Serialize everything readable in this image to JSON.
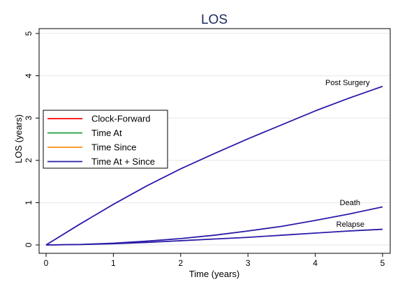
{
  "chart_data": {
    "type": "line",
    "title": "LOS",
    "xlabel": "Time (years)",
    "ylabel": "LOS (years)",
    "xlim": [
      0,
      5
    ],
    "ylim": [
      0,
      5
    ],
    "xticks": [
      0,
      1,
      2,
      3,
      4,
      5
    ],
    "yticks": [
      0,
      1,
      2,
      3,
      4,
      5
    ],
    "grid": true,
    "legend_position": "left",
    "x": [
      0,
      0.5,
      1,
      1.5,
      2,
      2.5,
      3,
      3.5,
      4,
      4.5,
      5
    ],
    "legend": [
      {
        "label": "Clock-Forward",
        "color": "#ff0000"
      },
      {
        "label": "Time At",
        "color": "#1e9b3a"
      },
      {
        "label": "Time Since",
        "color": "#ff8c1a"
      },
      {
        "label": "Time At + Since",
        "color": "#2a1aa8"
      }
    ],
    "annotations": [
      "Post Surgery",
      "Death",
      "Relapse"
    ],
    "series": [
      {
        "group": "Post Surgery",
        "legend_index": 3,
        "values": [
          0,
          0.49,
          0.96,
          1.4,
          1.8,
          2.16,
          2.51,
          2.84,
          3.17,
          3.47,
          3.75
        ]
      },
      {
        "group": "Death",
        "legend_index": 3,
        "values": [
          0,
          0.01,
          0.04,
          0.09,
          0.15,
          0.23,
          0.33,
          0.44,
          0.58,
          0.73,
          0.9
        ]
      },
      {
        "group": "Relapse",
        "legend_index": 3,
        "values": [
          0,
          0.01,
          0.03,
          0.06,
          0.1,
          0.14,
          0.18,
          0.23,
          0.28,
          0.33,
          0.37
        ]
      }
    ]
  }
}
